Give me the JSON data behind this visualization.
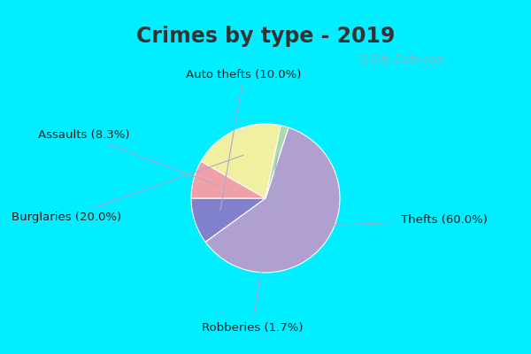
{
  "title": "Crimes by type - 2019",
  "slices": [
    {
      "label": "Thefts (60.0%)",
      "size": 60.0,
      "color": "#b0a0d0"
    },
    {
      "label": "Auto thefts (10.0%)",
      "size": 10.0,
      "color": "#8080cc"
    },
    {
      "label": "Assaults (8.3%)",
      "size": 8.3,
      "color": "#f0a0a8"
    },
    {
      "label": "Burglaries (20.0%)",
      "size": 20.0,
      "color": "#f0f0a0"
    },
    {
      "label": "Robberies (1.7%)",
      "size": 1.7,
      "color": "#b0d8b0"
    }
  ],
  "startangle": 72,
  "counterclock": false,
  "title_fontsize": 17,
  "title_color": "#333333",
  "label_fontsize": 9.5,
  "label_color": "#222222",
  "line_color": "#aaaacc",
  "watermark": "ⓘ City-Data.com",
  "watermark_color": "#99aabb",
  "bg_top_color": "#00eeff",
  "bg_main_color_tl": "#d0ede0",
  "bg_main_color_br": "#e8f0f8",
  "wedge_edge_color": "white",
  "wedge_linewidth": 0.8
}
